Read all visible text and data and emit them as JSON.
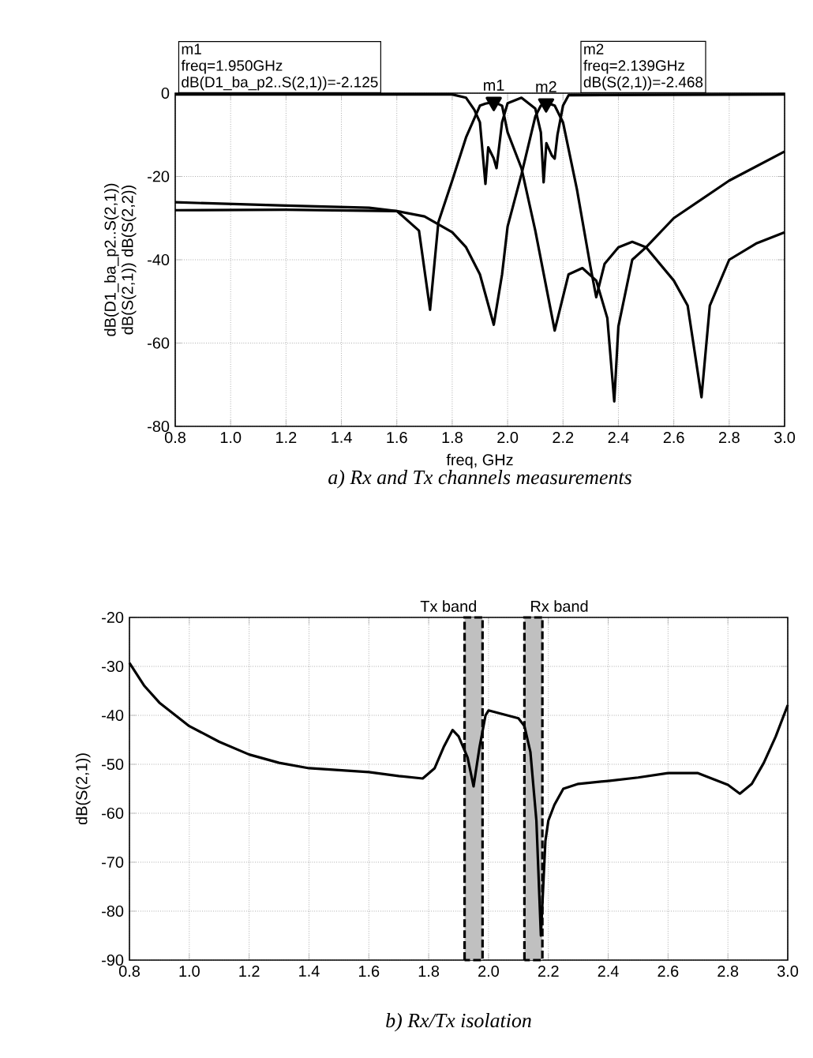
{
  "chart_data": [
    {
      "type": "line",
      "title": "a) Rx and Tx channels measurements",
      "xlabel": "freq, GHz",
      "ylabel": "dB(D1_ba_p2..S(2,1)) dB(S(2,1)) dB(S(2,2))",
      "xlim": [
        0.8,
        3.0
      ],
      "ylim": [
        -80,
        0
      ],
      "xticks": [
        0.8,
        {
          "value": 1,
          "label": "1.0"
        },
        1.2,
        1.4,
        1.6,
        1.8,
        {
          "value": 2,
          "label": "2.0"
        },
        2.2,
        2.4,
        2.6,
        2.8,
        {
          "value": 3,
          "label": "3.0"
        }
      ],
      "yticks": [
        -80,
        -60,
        -40,
        -20,
        0
      ],
      "grid": true,
      "line_style": "solid",
      "marker": "none",
      "annotations": [
        "m1",
        "freq=1.950GHz",
        "dB(D1_ba_p2..S(2,1))=-2.125",
        "m2",
        "freq=2.139GHz",
        "dB(S(2,1))=-2.468",
        {
          "text": "m1",
          "x": 1.95,
          "y": -2.125
        },
        {
          "text": "m2",
          "x": 2.139,
          "y": -2.468
        }
      ],
      "series": [
        {
          "color": "#000000",
          "x": [
            0.8,
            1.2,
            1.5,
            1.6,
            1.68,
            1.72,
            1.75,
            1.8,
            1.85,
            1.9,
            1.92,
            1.95,
            1.98,
            2.0,
            2.05,
            2.1,
            2.17,
            2.22,
            2.27,
            2.32,
            2.36,
            2.385,
            2.4,
            2.45,
            2.5,
            2.6,
            2.8,
            3.0
          ],
          "values": [
            -26.2,
            -27,
            -27.5,
            -28.3,
            -33,
            -52,
            -31,
            -21,
            -10.6,
            -3,
            -2.5,
            -2.1,
            -3,
            -9.4,
            -18,
            -33,
            -57,
            -43.5,
            -42,
            -45,
            -54,
            -74,
            -56,
            -40,
            -37,
            -30,
            -21,
            -14
          ]
        },
        {
          "color": "#000000",
          "x": [
            0.8,
            1.2,
            1.6,
            1.7,
            1.8,
            1.85,
            1.9,
            1.95,
            1.98,
            2.0,
            2.05,
            2.1,
            2.12,
            2.15,
            2.17,
            2.2,
            2.25,
            2.3,
            2.32,
            2.35,
            2.4,
            2.45,
            2.5,
            2.6,
            2.65,
            2.7,
            2.73,
            2.8,
            2.9,
            3.0
          ],
          "values": [
            -28.1,
            -28,
            -28.3,
            -29.6,
            -33.4,
            -37,
            -43.5,
            -55.6,
            -43.5,
            -32,
            -19.5,
            -5.6,
            -3,
            -2.5,
            -3,
            -7,
            -23,
            -42,
            -49,
            -41,
            -37,
            -35.7,
            -37,
            -45,
            -51,
            -73,
            -51,
            -40,
            -36,
            -33.4
          ]
        },
        {
          "type": "scatter",
          "marker": "triangle",
          "color": "#000000",
          "x": [
            1.95,
            2.139
          ],
          "values": [
            -2.125,
            -2.468
          ]
        },
        {
          "color": "#000000",
          "x": [
            0.8,
            1.8,
            1.85,
            1.88,
            1.9,
            1.92,
            1.93,
            1.95,
            1.96,
            1.98,
            2.0,
            2.05,
            2.1,
            2.12,
            2.13,
            2.14,
            2.16,
            2.17,
            2.18,
            2.2,
            2.22,
            3.0
          ],
          "values": [
            -0.3,
            -0.3,
            -1.1,
            -4,
            -7,
            -21.8,
            -13,
            -15.7,
            -18,
            -7,
            -2.4,
            -1.1,
            -3.7,
            -9.4,
            -21.4,
            -12,
            -15,
            -15.7,
            -10,
            -3,
            -0.5,
            -0.3
          ]
        }
      ]
    },
    {
      "type": "line",
      "title": "b) Rx/Tx isolation",
      "ylabel": "dB(S(2,1))",
      "xlim": [
        0.8,
        3.0
      ],
      "ylim": [
        -90,
        -20
      ],
      "xticks": [
        0.8,
        {
          "value": 1,
          "label": "1.0"
        },
        1.2,
        1.4,
        1.6,
        1.8,
        {
          "value": 2,
          "label": "2.0"
        },
        2.2,
        2.4,
        2.6,
        2.8,
        {
          "value": 3,
          "label": "3.0"
        }
      ],
      "yticks": [
        -90,
        -80,
        -70,
        -60,
        -50,
        -40,
        -30,
        -20
      ],
      "grid": true,
      "line_style": "solid",
      "marker": "none",
      "bands": [
        {
          "axis": "x",
          "from": 1.92,
          "to": 1.98,
          "label": "Tx band",
          "color": "#c0c0c0"
        },
        {
          "axis": "x",
          "from": 2.12,
          "to": 2.18,
          "label": "Rx band",
          "color": "#c0c0c0"
        }
      ],
      "series": [
        {
          "color": "#000000",
          "x": [
            0.8,
            0.85,
            0.9,
            1.0,
            1.1,
            1.2,
            1.3,
            1.4,
            1.6,
            1.7,
            1.78,
            1.82,
            1.85,
            1.88,
            1.9,
            1.93,
            1.95,
            1.97,
            1.99,
            2.0,
            2.05,
            2.1,
            2.12,
            2.14,
            2.16,
            2.175,
            2.19,
            2.2,
            2.22,
            2.25,
            2.3,
            2.4,
            2.5,
            2.6,
            2.7,
            2.8,
            2.84,
            2.88,
            2.92,
            2.96,
            3.0
          ],
          "values": [
            -29.3,
            -34,
            -37.4,
            -42.2,
            -45.4,
            -48,
            -49.7,
            -50.8,
            -51.6,
            -52.4,
            -52.9,
            -50.8,
            -46.5,
            -43,
            -44.3,
            -48.6,
            -54.5,
            -46.5,
            -40,
            -39,
            -39.8,
            -40.6,
            -42.2,
            -47.5,
            -61.5,
            -85,
            -65.7,
            -61.5,
            -58.3,
            -55,
            -54,
            -53.4,
            -52.7,
            -51.8,
            -51.8,
            -54.2,
            -56,
            -54,
            -49.7,
            -44.3,
            -37.9
          ]
        }
      ]
    }
  ]
}
